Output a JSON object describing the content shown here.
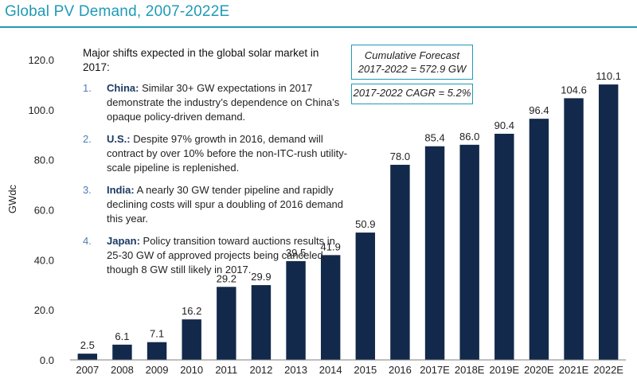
{
  "title": "Global PV Demand, 2007-2022E",
  "commentary": {
    "heading": "Major shifts expected in the global solar market in 2017:",
    "items": [
      {
        "number": "1.",
        "lead": "China:",
        "text": " Similar 30+ GW expectations in 2017 demonstrate the industry’s dependence on China’s opaque policy-driven demand."
      },
      {
        "number": "2.",
        "lead": "U.S.:",
        "text": " Despite 97% growth in 2016, demand will contract by over 10% before the non-ITC-rush utility-scale pipeline is replenished."
      },
      {
        "number": "3.",
        "lead": "India:",
        "text": " A nearly 30 GW tender pipeline and rapidly declining costs will spur a doubling of 2016 demand this year."
      },
      {
        "number": "4.",
        "lead": "Japan:",
        "text": " Policy transition toward auctions results in 25-30 GW of approved projects being canceled, though 8 GW still likely in 2017."
      }
    ]
  },
  "callouts": {
    "forecast_line1": "Cumulative Forecast",
    "forecast_line2": "2017-2022 = 572.9 GW",
    "cagr": "2017-2022 CAGR = 5.2%"
  },
  "colors": {
    "bar": "#13294b",
    "accent": "#1f9bb8",
    "axis": "#7f7f7f"
  },
  "chart_data": {
    "type": "bar",
    "title": "Global PV Demand, 2007-2022E",
    "ylabel": "GWdc",
    "xlabel": "",
    "categories": [
      "2007",
      "2008",
      "2009",
      "2010",
      "2011",
      "2012",
      "2013",
      "2014",
      "2015",
      "2016",
      "2017E",
      "2018E",
      "2019E",
      "2020E",
      "2021E",
      "2022E"
    ],
    "values": [
      2.5,
      6.1,
      7.1,
      16.2,
      29.2,
      29.9,
      39.5,
      41.9,
      50.9,
      78.0,
      85.4,
      86.0,
      90.4,
      96.4,
      104.6,
      110.1
    ],
    "value_labels": [
      "2.5",
      "6.1",
      "7.1",
      "16.2",
      "29.2",
      "29.9",
      "39.5",
      "41.9",
      "50.9",
      "78.0",
      "85.4",
      "86.0",
      "90.4",
      "96.4",
      "104.6",
      "110.1"
    ],
    "ylim": [
      0,
      120
    ],
    "yticks": [
      "0.0",
      "20.0",
      "40.0",
      "60.0",
      "80.0",
      "100.0",
      "120.0"
    ],
    "grid": false,
    "legend": "none"
  }
}
